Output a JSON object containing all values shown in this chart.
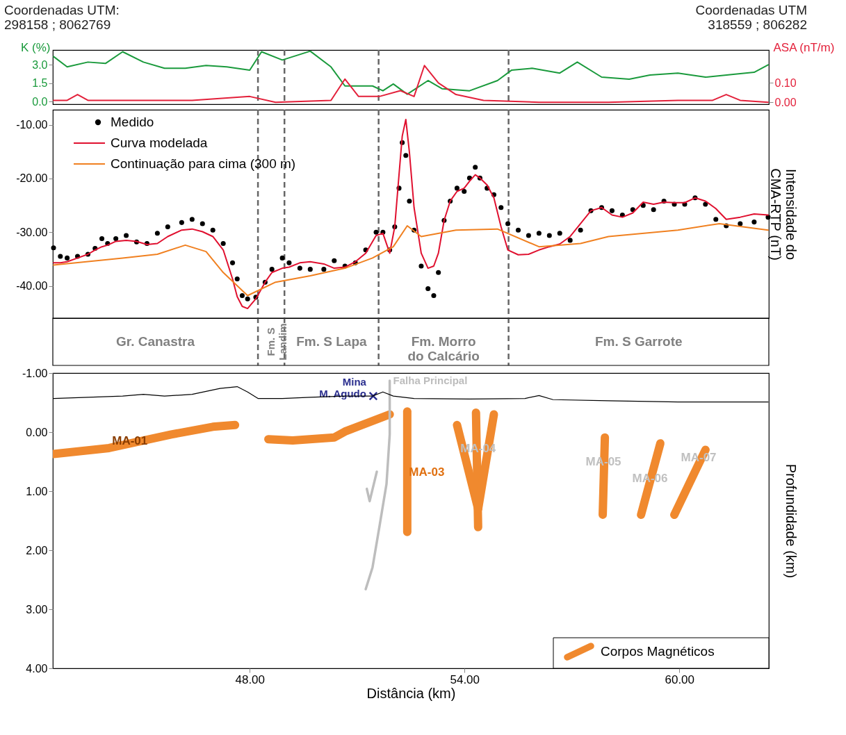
{
  "chart_data": [
    {
      "type": "line",
      "xlim": [
        42.5,
        62.5
      ],
      "ylim": [
        -0.2,
        4.2
      ],
      "yticks": [
        {
          "value": 0,
          "label": "0.0"
        },
        {
          "value": 1.5,
          "label": "1.5"
        },
        {
          "value": 3,
          "label": "3.0"
        }
      ],
      "y2lim": [
        -0.01,
        0.27
      ],
      "y2ticks": [
        {
          "value": 0,
          "label": "0.00"
        },
        {
          "value": 0.1,
          "label": "0.10"
        }
      ],
      "ylabel": "K (%)",
      "y2label": "ASA (nT/m)",
      "tick_labels": "y",
      "grid": false,
      "annotations": [
        "Coordenadas UTM:\n298158 ; 8062769",
        "Coordenadas UTM\n318559 ; 806282"
      ],
      "ref_lines": [
        {
          "axis": "x",
          "value": 48.23,
          "line_style": "dashed",
          "color": "#666666"
        },
        {
          "axis": "x",
          "value": 48.97,
          "line_style": "dashed",
          "color": "#666666"
        },
        {
          "axis": "x",
          "value": 51.6,
          "line_style": "dashed",
          "color": "#666666"
        },
        {
          "axis": "x",
          "value": 55.23,
          "line_style": "dashed",
          "color": "#666666"
        }
      ],
      "series": [
        {
          "color": "#1a9a3c",
          "x": [
            42.52,
            42.9,
            43.48,
            43.97,
            44.45,
            45.03,
            45.62,
            46.2,
            46.78,
            47.36,
            48.0,
            48.33,
            48.91,
            49.69,
            50.27,
            50.66,
            51.43,
            51.72,
            52.01,
            52.4,
            52.98,
            53.37,
            54.14,
            54.92,
            55.31,
            55.89,
            56.66,
            57.15,
            57.83,
            58.6,
            59.18,
            59.96,
            60.73,
            61.51,
            62.09,
            62.48
          ],
          "values": [
            3.67,
            2.83,
            3.22,
            3.11,
            4.06,
            3.22,
            2.72,
            2.72,
            2.94,
            2.83,
            2.56,
            4.06,
            3.39,
            4.11,
            2.83,
            1.28,
            1.28,
            0.89,
            1.44,
            0.61,
            1.72,
            1.06,
            0.89,
            1.72,
            2.56,
            2.72,
            2.33,
            3.22,
            2.0,
            1.83,
            2.17,
            2.33,
            2.0,
            2.22,
            2.39,
            3.0
          ]
        },
        {
          "color": "#e3203a",
          "axis": "y2",
          "x": [
            42.52,
            42.9,
            43.19,
            43.48,
            46.39,
            48.0,
            48.72,
            50.27,
            50.66,
            51.04,
            51.62,
            52.21,
            52.59,
            52.88,
            53.27,
            53.76,
            54.53,
            56.08,
            58.02,
            59.96,
            60.93,
            61.31,
            61.7,
            62.48
          ],
          "values": [
            0.01,
            0.01,
            0.04,
            0.01,
            0.01,
            0.03,
            0.0,
            0.01,
            0.12,
            0.03,
            0.03,
            0.06,
            0.03,
            0.19,
            0.1,
            0.04,
            0.01,
            0.0,
            0.0,
            0.01,
            0.01,
            0.04,
            0.01,
            0.0
          ]
        }
      ]
    },
    {
      "type": "line",
      "xlim": [
        42.5,
        62.5
      ],
      "ylim": [
        -46,
        -7.2
      ],
      "yticks": [
        {
          "value": -10,
          "label": "-10.00"
        },
        {
          "value": -20,
          "label": "-20.00"
        },
        {
          "value": -30,
          "label": "-30.00"
        },
        {
          "value": -40,
          "label": "-40.00"
        }
      ],
      "ylabel": "Intensidade do\nCMA-RTP (nT)",
      "tick_labels": "y",
      "legend": "top left",
      "grid": false,
      "annotations": [
        "Gr. Canastra",
        "Fm. S\nLandim",
        "Fm. S Lapa",
        "Fm. Morro\ndo Calcário",
        "Fm. S Garrote"
      ],
      "ref_lines": [
        {
          "axis": "x",
          "value": 48.23,
          "line_style": "dashed",
          "color": "#666666"
        },
        {
          "axis": "x",
          "value": 48.97,
          "line_style": "dashed",
          "color": "#666666"
        },
        {
          "axis": "x",
          "value": 51.6,
          "line_style": "dashed",
          "color": "#666666"
        },
        {
          "axis": "x",
          "value": 55.23,
          "line_style": "dashed",
          "color": "#666666"
        }
      ],
      "x": [
        42.52,
        42.71,
        42.9,
        43.19,
        43.48,
        43.68,
        43.87,
        44.03,
        44.26,
        44.55,
        44.84,
        45.13,
        45.42,
        45.71,
        46.1,
        46.39,
        46.68,
        46.97,
        47.26,
        47.52,
        47.65,
        47.79,
        47.94,
        48.17,
        48.43,
        48.62,
        48.91,
        49.1,
        49.4,
        49.69,
        50.07,
        50.36,
        50.66,
        50.95,
        51.24,
        51.53,
        51.72,
        51.91,
        52.05,
        52.17,
        52.26,
        52.36,
        52.46,
        52.59,
        52.79,
        52.98,
        53.14,
        53.27,
        53.43,
        53.6,
        53.79,
        53.99,
        54.14,
        54.3,
        54.43,
        54.63,
        54.82,
        55.02,
        55.21,
        55.5,
        55.79,
        56.08,
        56.37,
        56.66,
        56.95,
        57.24,
        57.53,
        57.83,
        58.12,
        58.41,
        58.7,
        58.99,
        59.28,
        59.57,
        59.86,
        60.15,
        60.44,
        60.73,
        61.02,
        61.31,
        61.7,
        62.09,
        62.48
      ],
      "series": [
        {
          "name": "Medido",
          "type": "scatter",
          "marker": "circle",
          "color": "#000000",
          "values": [
            -32.9,
            -34.5,
            -34.8,
            -34.5,
            -34.1,
            -33.0,
            -31.2,
            -32.1,
            -31.2,
            -30.6,
            -31.8,
            -32.1,
            -30.2,
            -29.0,
            -28.2,
            -27.6,
            -28.4,
            -29.6,
            -32.1,
            -35.7,
            -38.7,
            -41.8,
            -42.4,
            -42.1,
            -39.3,
            -36.9,
            -34.8,
            -35.7,
            -36.7,
            -36.9,
            -36.9,
            -35.3,
            -36.3,
            -35.7,
            -33.3,
            -30.0,
            -30.0,
            -33.3,
            -29.0,
            -21.8,
            -13.3,
            -15.7,
            -24.2,
            -29.6,
            -36.3,
            -40.5,
            -41.8,
            -37.5,
            -27.8,
            -24.2,
            -21.8,
            -22.4,
            -19.9,
            -17.9,
            -19.9,
            -21.8,
            -23.0,
            -25.4,
            -28.4,
            -29.6,
            -30.6,
            -30.2,
            -30.6,
            -30.2,
            -31.5,
            -29.6,
            -26.0,
            -25.4,
            -26.0,
            -26.8,
            -25.8,
            -25.0,
            -25.8,
            -24.2,
            -24.8,
            -24.8,
            -23.6,
            -24.8,
            -27.6,
            -28.8,
            -28.4,
            -28.1,
            -27.2
          ]
        },
        {
          "name": "Curva modelada",
          "color": "#e0102f",
          "values": [
            -35.7,
            -35.7,
            -35.5,
            -34.8,
            -34.1,
            -33.3,
            -32.7,
            -32.4,
            -31.7,
            -31.5,
            -31.7,
            -32.3,
            -32.1,
            -30.8,
            -29.6,
            -29.4,
            -29.9,
            -30.8,
            -33.3,
            -38.7,
            -42.0,
            -43.8,
            -44.2,
            -42.4,
            -39.3,
            -37.5,
            -36.7,
            -36.5,
            -35.7,
            -35.5,
            -35.9,
            -36.7,
            -36.5,
            -35.5,
            -33.9,
            -30.6,
            -30.2,
            -33.9,
            -29.0,
            -19.3,
            -12.1,
            -9.0,
            -15.1,
            -25.4,
            -33.9,
            -36.7,
            -36.3,
            -33.9,
            -27.8,
            -24.2,
            -22.4,
            -21.8,
            -20.5,
            -19.3,
            -19.9,
            -21.2,
            -23.6,
            -29.0,
            -33.3,
            -34.2,
            -34.1,
            -33.3,
            -32.7,
            -32.2,
            -30.8,
            -28.4,
            -26.0,
            -25.4,
            -26.8,
            -27.2,
            -26.4,
            -24.4,
            -24.8,
            -24.4,
            -24.5,
            -24.5,
            -23.6,
            -24.2,
            -25.6,
            -27.6,
            -27.2,
            -26.6,
            -26.8
          ]
        },
        {
          "name": "Continuação para cima (300 m)",
          "color": "#f08020",
          "x": [
            42.52,
            44.45,
            45.42,
            46.2,
            46.78,
            47.26,
            47.94,
            48.72,
            49.69,
            50.66,
            51.43,
            52.01,
            52.4,
            52.79,
            53.76,
            54.92,
            56.08,
            57.24,
            58.02,
            59.96,
            61.12,
            62.48
          ],
          "values": [
            -36.1,
            -34.8,
            -34.1,
            -32.4,
            -33.6,
            -37.5,
            -41.8,
            -39.3,
            -38.1,
            -36.7,
            -34.8,
            -32.7,
            -28.8,
            -30.8,
            -29.6,
            -29.4,
            -32.7,
            -32.1,
            -30.8,
            -29.6,
            -28.4,
            -29.6
          ]
        }
      ]
    },
    {
      "type": "line",
      "xlim": [
        42.5,
        62.5
      ],
      "ylim": [
        4.0,
        -1.0
      ],
      "xticks": [
        {
          "value": 48,
          "label": "48.00"
        },
        {
          "value": 54,
          "label": "54.00"
        },
        {
          "value": 60,
          "label": "60.00"
        }
      ],
      "yticks": [
        {
          "value": -1,
          "label": "-1.00"
        },
        {
          "value": 0,
          "label": "0.00"
        },
        {
          "value": 1,
          "label": "1.00"
        },
        {
          "value": 2,
          "label": "2.00"
        },
        {
          "value": 3,
          "label": "3.00"
        },
        {
          "value": 4,
          "label": "4.00"
        }
      ],
      "xlabel": "Distância (km)",
      "ylabel": "Profundidade (km)",
      "legend": "bottom right",
      "grid": false,
      "annotations": [
        {
          "text": "MA-01",
          "x": 44.65,
          "y": 0.15
        },
        {
          "text": "MA-03",
          "x": 52.4,
          "y": 0.68
        },
        {
          "text": "MA-04",
          "x": 54.38,
          "y": 0.28
        },
        {
          "text": "MA-05",
          "x": 57.88,
          "y": 0.5
        },
        {
          "text": "MA-06",
          "x": 59.18,
          "y": 0.79
        },
        {
          "text": "MA-07",
          "x": 60.54,
          "y": 0.43
        }
      ],
      "series": [
        {
          "name": "Corpos Magnéticos",
          "color": "#f0892e",
          "x": [
            42.52,
            44.07,
            45.81,
            46.97,
            47.59,
            null,
            48.52,
            49.2,
            50.36,
            50.66,
            51.91,
            null,
            52.4,
            52.4,
            null,
            53.79,
            54.38,
            null,
            54.32,
            54.38,
            null,
            54.82,
            54.38,
            null,
            57.92,
            57.86,
            null,
            59.47,
            58.93,
            null,
            60.73,
            59.86
          ],
          "values": [
            0.37,
            0.27,
            0.04,
            -0.09,
            -0.12,
            null,
            0.12,
            0.14,
            0.09,
            -0.01,
            -0.3,
            null,
            -0.35,
            1.69,
            null,
            -0.12,
            1.3,
            null,
            -0.33,
            1.61,
            null,
            -0.3,
            1.3,
            null,
            0.09,
            1.4,
            null,
            0.19,
            1.4,
            null,
            0.3,
            1.4
          ]
        },
        {
          "name": "Falha Principal",
          "color": "#bdbdbd",
          "x": [
            51.91,
            51.91,
            51.82,
            51.62,
            51.43,
            51.24,
            null,
            51.55,
            51.35,
            51.27
          ],
          "values": [
            -0.87,
            0.04,
            0.88,
            1.61,
            2.29,
            2.66,
            null,
            0.67,
            1.17,
            0.96
          ]
        },
        {
          "name": "Mina\nM. Agudo",
          "type": "scatter",
          "marker": "cross",
          "color": "#2b2f8f",
          "x": [
            51.45
          ],
          "values": [
            -0.61
          ]
        },
        {
          "color": "#000000",
          "x": [
            42.52,
            44.45,
            45.03,
            45.62,
            46.39,
            47.17,
            47.65,
            47.94,
            48.23,
            48.91,
            49.69,
            50.66,
            51.43,
            51.72,
            52.01,
            52.59,
            54.14,
            55.69,
            56.08,
            56.47,
            58.02,
            59.96,
            62.48
          ],
          "values": [
            -0.57,
            -0.61,
            -0.64,
            -0.61,
            -0.64,
            -0.74,
            -0.77,
            -0.68,
            -0.57,
            -0.57,
            -0.59,
            -0.61,
            -0.61,
            -0.68,
            -0.61,
            -0.57,
            -0.56,
            -0.57,
            -0.62,
            -0.55,
            -0.53,
            -0.51,
            -0.51
          ]
        }
      ]
    }
  ]
}
